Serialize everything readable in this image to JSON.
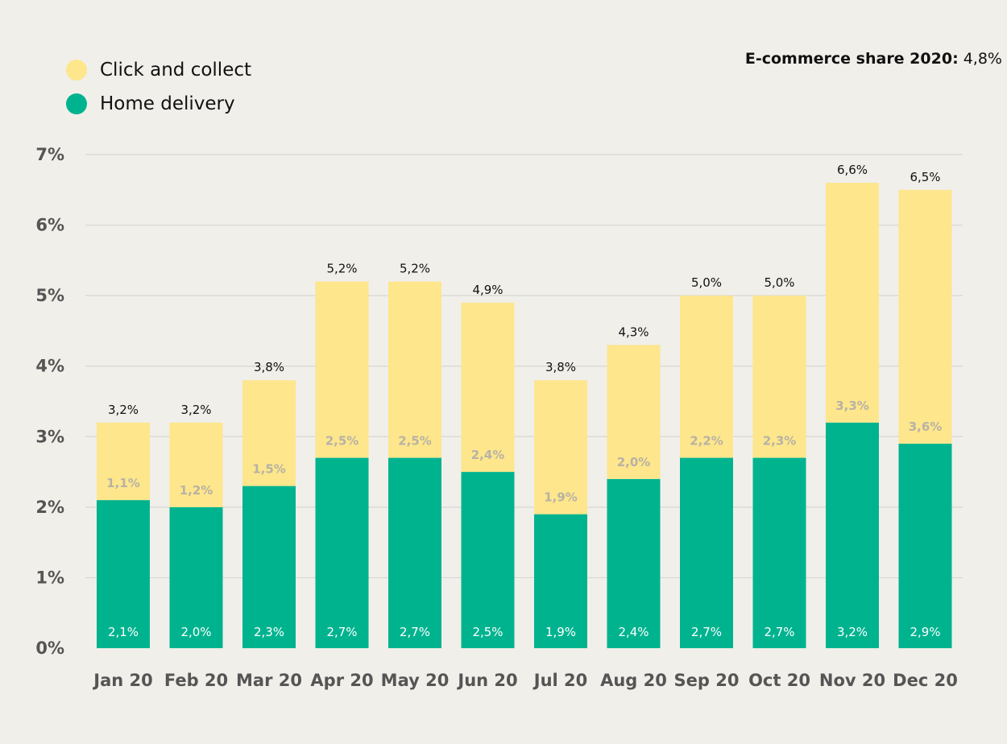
{
  "annotation": {
    "label": "E-commerce share 2020:",
    "value": "4,8%"
  },
  "legend": [
    {
      "label": "Click and collect",
      "color": "#fde68c"
    },
    {
      "label": "Home delivery",
      "color": "#00b38f"
    }
  ],
  "chart_data": {
    "type": "bar",
    "stacked": true,
    "categories": [
      "Jan 20",
      "Feb 20",
      "Mar 20",
      "Apr 20",
      "May 20",
      "Jun 20",
      "Jul 20",
      "Aug 20",
      "Sep 20",
      "Oct 20",
      "Nov 20",
      "Dec 20"
    ],
    "series": [
      {
        "name": "Home delivery",
        "color": "#00b38f",
        "values": [
          2.1,
          2.0,
          2.3,
          2.7,
          2.7,
          2.5,
          1.9,
          2.4,
          2.7,
          2.7,
          3.2,
          2.9
        ],
        "labels": [
          "2,1%",
          "2,0%",
          "2,3%",
          "2,7%",
          "2,7%",
          "2,5%",
          "1,9%",
          "2,4%",
          "2,7%",
          "2,7%",
          "3,2%",
          "2,9%"
        ]
      },
      {
        "name": "Click and collect",
        "color": "#fde68c",
        "values": [
          1.1,
          1.2,
          1.5,
          2.5,
          2.5,
          2.4,
          1.9,
          2.0,
          2.2,
          2.3,
          3.3,
          3.6
        ],
        "labels": [
          "1,1%",
          "1,2%",
          "1,5%",
          "2,5%",
          "2,5%",
          "2,4%",
          "1,9%",
          "2,0%",
          "2,2%",
          "2,3%",
          "3,3%",
          "3,6%"
        ]
      }
    ],
    "totals": [
      3.2,
      3.2,
      3.8,
      5.2,
      5.2,
      4.9,
      3.8,
      4.3,
      5.0,
      5.0,
      6.6,
      6.5
    ],
    "total_labels": [
      "3,2%",
      "3,2%",
      "3,8%",
      "5,2%",
      "5,2%",
      "4,9%",
      "3,8%",
      "4,3%",
      "5,0%",
      "5,0%",
      "6,6%",
      "6,5%"
    ],
    "y_ticks": [
      "0%",
      "1%",
      "2%",
      "3%",
      "4%",
      "5%",
      "6%",
      "7%"
    ],
    "ylim": [
      0,
      7
    ],
    "grid": true,
    "legend_position": "top-left"
  }
}
